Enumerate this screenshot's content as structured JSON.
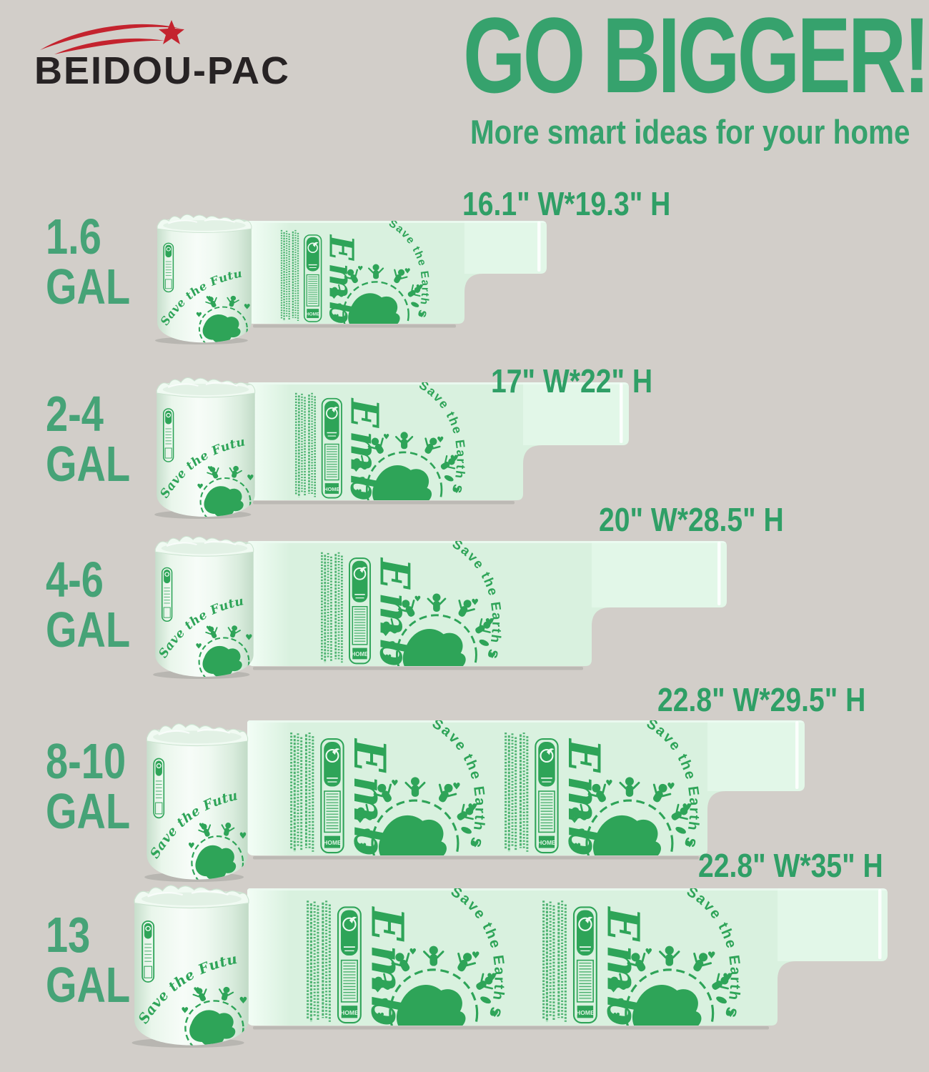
{
  "colors": {
    "background": "#d2cec9",
    "accent_green": "#36a26d",
    "label_green": "#46a377",
    "dimension_green": "#2f9f66",
    "print_green": "#2ea458",
    "bag_mint": "#d9f1df",
    "bag_mint_light": "#eafbef",
    "roll_mint": "#eef9f0",
    "logo_red": "#c4232e",
    "logo_text_color": "#272324"
  },
  "logo": {
    "text": "BEIDOU-PAC"
  },
  "header": {
    "title": "GO BIGGER!",
    "subtitle": "More smart ideas for your home"
  },
  "bag_print": {
    "arc_text": "Save the Earth S",
    "script_text": "Embr",
    "roll_text": "Save the Future",
    "cert_label": "HOME"
  },
  "rows": [
    {
      "size": "1.6",
      "unit": "GAL",
      "dimensions": "16.1\" W*19.3\" H"
    },
    {
      "size": "2-4",
      "unit": "GAL",
      "dimensions": "17\" W*22\" H"
    },
    {
      "size": "4-6",
      "unit": "GAL",
      "dimensions": "20\" W*28.5\" H"
    },
    {
      "size": "8-10",
      "unit": "GAL",
      "dimensions": "22.8\" W*29.5\" H"
    },
    {
      "size": "13",
      "unit": "GAL",
      "dimensions": "22.8\" W*35\" H"
    }
  ]
}
